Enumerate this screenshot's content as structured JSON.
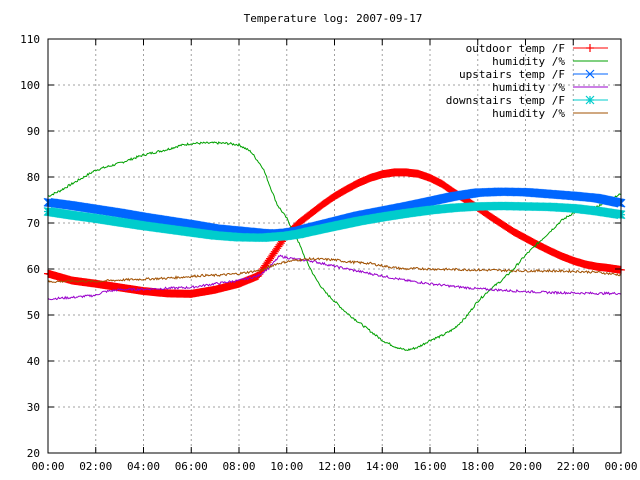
{
  "chart_data": {
    "type": "line",
    "title": "Temperature log: 2007-09-17",
    "xlabel": "",
    "ylabel": "",
    "xlim": [
      0,
      24
    ],
    "ylim": [
      20,
      110
    ],
    "x_ticks": [
      "00:00",
      "02:00",
      "04:00",
      "06:00",
      "08:00",
      "10:00",
      "12:00",
      "14:00",
      "16:00",
      "18:00",
      "20:00",
      "22:00",
      "00:00"
    ],
    "y_ticks": [
      "20",
      "30",
      "40",
      "50",
      "60",
      "70",
      "80",
      "90",
      "100",
      "110"
    ],
    "grid": true,
    "legend_position": "top-right",
    "x_unit": "hours",
    "series": [
      {
        "name": "outdoor temp /F",
        "color": "#ff0000",
        "marker": "plus",
        "points": [
          [
            0,
            59
          ],
          [
            1,
            57.5
          ],
          [
            2,
            56.8
          ],
          [
            3,
            56
          ],
          [
            4,
            55.2
          ],
          [
            5,
            54.7
          ],
          [
            6,
            54.6
          ],
          [
            7,
            55.5
          ],
          [
            8,
            56.8
          ],
          [
            8.8,
            58.5
          ],
          [
            9.2,
            61.5
          ],
          [
            9.6,
            64.5
          ],
          [
            10,
            67.5
          ],
          [
            10.5,
            70
          ],
          [
            11,
            72
          ],
          [
            11.5,
            74
          ],
          [
            12,
            75.8
          ],
          [
            12.5,
            77.3
          ],
          [
            13,
            78.7
          ],
          [
            13.5,
            79.8
          ],
          [
            14,
            80.6
          ],
          [
            14.5,
            81
          ],
          [
            15,
            81
          ],
          [
            15.5,
            80.7
          ],
          [
            16,
            79.8
          ],
          [
            16.5,
            78.5
          ],
          [
            17,
            76.7
          ],
          [
            17.5,
            75
          ],
          [
            18,
            73.3
          ],
          [
            18.5,
            71.5
          ],
          [
            19,
            69.8
          ],
          [
            19.5,
            68.1
          ],
          [
            20,
            66.7
          ],
          [
            20.5,
            65.3
          ],
          [
            21,
            64
          ],
          [
            21.5,
            62.8
          ],
          [
            22,
            61.8
          ],
          [
            22.5,
            61
          ],
          [
            23,
            60.5
          ],
          [
            23.5,
            60.2
          ],
          [
            24,
            59.8
          ]
        ]
      },
      {
        "name": "humidity /%",
        "color": "#00a000",
        "marker": "none",
        "points": [
          [
            0,
            75.8
          ],
          [
            0.5,
            77
          ],
          [
            1,
            78.5
          ],
          [
            1.5,
            80
          ],
          [
            2,
            81.5
          ],
          [
            3,
            83
          ],
          [
            4,
            84.8
          ],
          [
            5,
            86
          ],
          [
            5.5,
            86.8
          ],
          [
            6,
            87.3
          ],
          [
            7,
            87.4
          ],
          [
            7.5,
            87.3
          ],
          [
            8,
            87
          ],
          [
            8.5,
            85.5
          ],
          [
            9,
            82
          ],
          [
            9.3,
            78
          ],
          [
            9.6,
            74
          ],
          [
            10,
            71
          ],
          [
            10.4,
            67
          ],
          [
            10.8,
            62
          ],
          [
            11.2,
            58
          ],
          [
            11.6,
            55
          ],
          [
            12,
            53
          ],
          [
            12.5,
            50.5
          ],
          [
            13,
            48.5
          ],
          [
            13.5,
            46.5
          ],
          [
            14,
            44.5
          ],
          [
            14.5,
            43.2
          ],
          [
            15,
            42.3
          ],
          [
            15.5,
            43
          ],
          [
            16,
            44.5
          ],
          [
            16.5,
            45.5
          ],
          [
            17,
            47
          ],
          [
            17.5,
            49.5
          ],
          [
            18,
            53
          ],
          [
            18.5,
            55.5
          ],
          [
            19,
            57.5
          ],
          [
            19.5,
            60
          ],
          [
            20,
            63
          ],
          [
            20.5,
            65.5
          ],
          [
            21,
            68
          ],
          [
            21.5,
            70.5
          ],
          [
            22,
            72.2
          ],
          [
            22.5,
            73
          ],
          [
            23,
            73.5
          ],
          [
            23.5,
            75.2
          ],
          [
            24,
            76.3
          ]
        ]
      },
      {
        "name": "upstairs temp /F",
        "color": "#0066ff",
        "marker": "cross",
        "points": [
          [
            0,
            74.5
          ],
          [
            1,
            73.8
          ],
          [
            2,
            73
          ],
          [
            3,
            72.2
          ],
          [
            4,
            71.3
          ],
          [
            5,
            70.5
          ],
          [
            6,
            69.7
          ],
          [
            7,
            68.8
          ],
          [
            8,
            68.3
          ],
          [
            9,
            67.8
          ],
          [
            9.5,
            67.7
          ],
          [
            10,
            67.9
          ],
          [
            10.5,
            68.3
          ],
          [
            11,
            69
          ],
          [
            12,
            70.3
          ],
          [
            13,
            71.6
          ],
          [
            14,
            72.6
          ],
          [
            15,
            73.6
          ],
          [
            16,
            74.7
          ],
          [
            17,
            75.8
          ],
          [
            18,
            76.6
          ],
          [
            19,
            76.8
          ],
          [
            20,
            76.7
          ],
          [
            21,
            76.3
          ],
          [
            22,
            75.9
          ],
          [
            23,
            75.4
          ],
          [
            24,
            74.3
          ]
        ]
      },
      {
        "name": "humidity /%",
        "color": "#9900cc",
        "marker": "none",
        "points": [
          [
            0,
            53.5
          ],
          [
            1,
            53.8
          ],
          [
            2,
            54.3
          ],
          [
            2.3,
            55
          ],
          [
            3,
            55.5
          ],
          [
            4,
            55.6
          ],
          [
            5,
            55.8
          ],
          [
            6,
            56
          ],
          [
            7,
            56.8
          ],
          [
            8,
            57.5
          ],
          [
            8.8,
            58.5
          ],
          [
            9.3,
            60.5
          ],
          [
            9.7,
            62.8
          ],
          [
            10,
            62.5
          ],
          [
            10.5,
            62
          ],
          [
            11,
            61.8
          ],
          [
            11.5,
            61.2
          ],
          [
            12,
            60.6
          ],
          [
            13,
            59.5
          ],
          [
            14,
            58.5
          ],
          [
            15,
            57.5
          ],
          [
            16,
            56.8
          ],
          [
            17,
            56.2
          ],
          [
            18,
            55.7
          ],
          [
            19,
            55.4
          ],
          [
            20,
            55.1
          ],
          [
            21,
            54.9
          ],
          [
            22,
            54.8
          ],
          [
            23,
            54.7
          ],
          [
            24,
            54.7
          ]
        ]
      },
      {
        "name": "downstairs temp /F",
        "color": "#00cccc",
        "marker": "star",
        "points": [
          [
            0,
            72.5
          ],
          [
            1,
            71.7
          ],
          [
            2,
            71
          ],
          [
            3,
            70.2
          ],
          [
            4,
            69.4
          ],
          [
            5,
            68.7
          ],
          [
            6,
            68
          ],
          [
            7,
            67.3
          ],
          [
            8,
            66.9
          ],
          [
            9,
            66.8
          ],
          [
            10,
            67.2
          ],
          [
            10.5,
            67.6
          ],
          [
            11,
            68.2
          ],
          [
            12,
            69.3
          ],
          [
            13,
            70.4
          ],
          [
            14,
            71.3
          ],
          [
            15,
            72.1
          ],
          [
            16,
            72.8
          ],
          [
            17,
            73.3
          ],
          [
            18,
            73.6
          ],
          [
            19,
            73.7
          ],
          [
            20,
            73.6
          ],
          [
            21,
            73.5
          ],
          [
            22,
            73.2
          ],
          [
            23,
            72.6
          ],
          [
            24,
            71.8
          ]
        ]
      },
      {
        "name": "humidity /%",
        "color": "#a05000",
        "marker": "none",
        "points": [
          [
            0,
            57.2
          ],
          [
            1,
            57.4
          ],
          [
            2,
            57.3
          ],
          [
            3,
            57.6
          ],
          [
            4,
            57.8
          ],
          [
            5,
            58
          ],
          [
            5.8,
            58.3
          ],
          [
            6,
            58.4
          ],
          [
            6.5,
            58.6
          ],
          [
            7,
            58.6
          ],
          [
            7.5,
            58.8
          ],
          [
            8,
            59
          ],
          [
            9,
            59.8
          ],
          [
            9.5,
            61
          ],
          [
            10,
            61.6
          ],
          [
            10.5,
            62
          ],
          [
            11,
            62.2
          ],
          [
            12,
            62
          ],
          [
            12.5,
            61.6
          ],
          [
            13,
            61.4
          ],
          [
            13.5,
            61.2
          ],
          [
            14,
            60.7
          ],
          [
            14.5,
            60.3
          ],
          [
            15,
            60
          ],
          [
            15.5,
            60.1
          ],
          [
            16,
            60
          ],
          [
            17,
            59.9
          ],
          [
            18,
            59.8
          ],
          [
            19,
            59.7
          ],
          [
            20,
            59.6
          ],
          [
            21,
            59.6
          ],
          [
            22,
            59.5
          ],
          [
            23,
            59.3
          ],
          [
            24,
            58.7
          ]
        ]
      }
    ]
  }
}
